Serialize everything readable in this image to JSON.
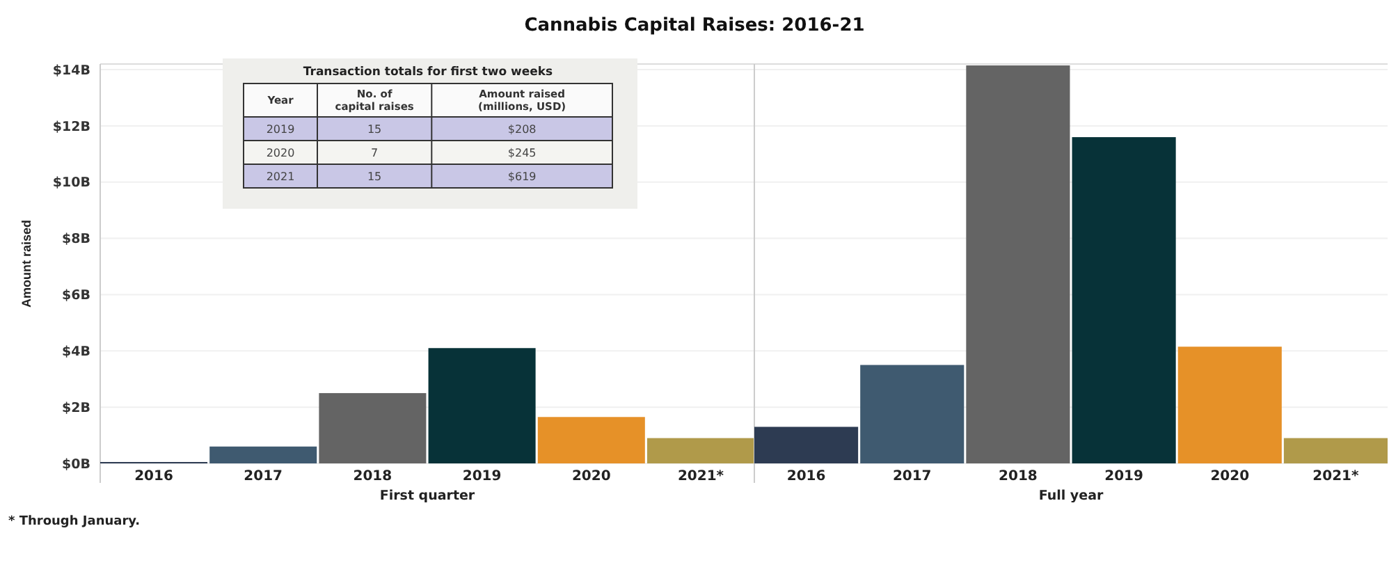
{
  "chart_data": [
    {
      "type": "bar",
      "title": "Cannabis Capital Raises: 2016-21",
      "ylabel": "Amount raised",
      "xlabel": "First quarter",
      "categories": [
        "2016",
        "2017",
        "2018",
        "2019",
        "2020",
        "2021*"
      ],
      "values": [
        0.05,
        0.6,
        2.5,
        4.1,
        1.65,
        0.9
      ],
      "colors": [
        "#2d3b52",
        "#3f5a70",
        "#646464",
        "#073238",
        "#e69128",
        "#b09a4a"
      ],
      "ylim": [
        0,
        14.2
      ],
      "yticks": [
        {
          "value": 0,
          "label": "$0B"
        },
        {
          "value": 2,
          "label": "$2B"
        },
        {
          "value": 4,
          "label": "$4B"
        },
        {
          "value": 6,
          "label": "$6B"
        },
        {
          "value": 8,
          "label": "$8B"
        },
        {
          "value": 10,
          "label": "$10B"
        },
        {
          "value": 12,
          "label": "$12B"
        },
        {
          "value": 14,
          "label": "$14B"
        }
      ],
      "grid": "y",
      "annotations": [
        "* Through January."
      ]
    },
    {
      "type": "bar",
      "xlabel": "Full year",
      "categories": [
        "2016",
        "2017",
        "2018",
        "2019",
        "2020",
        "2021*"
      ],
      "values": [
        1.3,
        3.5,
        14.15,
        11.6,
        4.15,
        0.9
      ],
      "colors": [
        "#2d3b52",
        "#3f5a70",
        "#646464",
        "#073238",
        "#e69128",
        "#b09a4a"
      ],
      "ylim": [
        0,
        14.2
      ],
      "grid": "y",
      "tick_labels": "x"
    },
    {
      "type": "other",
      "title": "Transaction totals for first two weeks",
      "categories": [
        "Year",
        "No. of capital raises",
        "Amount raised (millions, USD)"
      ],
      "cell_labels": [
        [
          "2019",
          "15",
          "$208"
        ],
        [
          "2020",
          "7",
          "$245"
        ],
        [
          "2021",
          "15",
          "$619"
        ]
      ]
    }
  ]
}
